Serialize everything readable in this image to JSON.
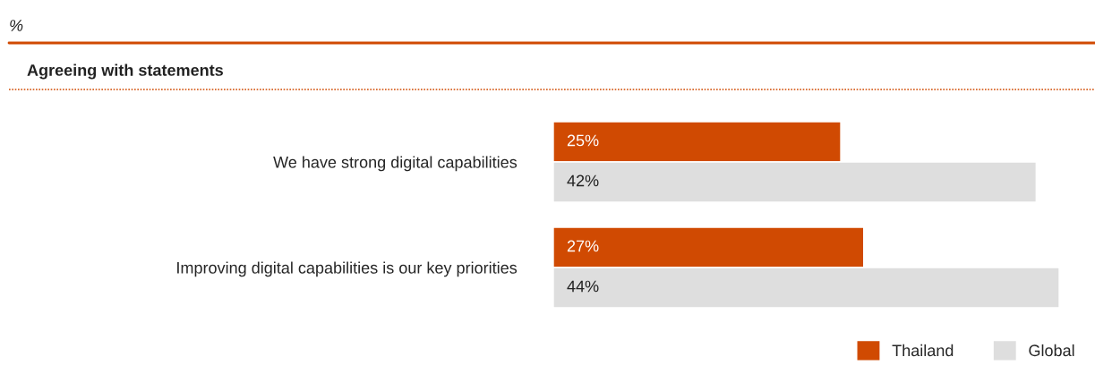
{
  "chart_data": {
    "type": "bar",
    "orientation": "horizontal",
    "title": "%",
    "subtitle": "Agreeing with statements",
    "categories": [
      "We have strong digital capabilities",
      "Improving digital capabilities is our key priorities"
    ],
    "series": [
      {
        "name": "Thailand",
        "color": "#d04a02",
        "values": [
          25,
          27
        ],
        "value_labels": [
          "25%",
          "27%"
        ]
      },
      {
        "name": "Global",
        "color": "#dedede",
        "values": [
          42,
          44
        ],
        "value_labels": [
          "42%",
          "44%"
        ]
      }
    ],
    "legend": "bottom right",
    "grid": false
  }
}
